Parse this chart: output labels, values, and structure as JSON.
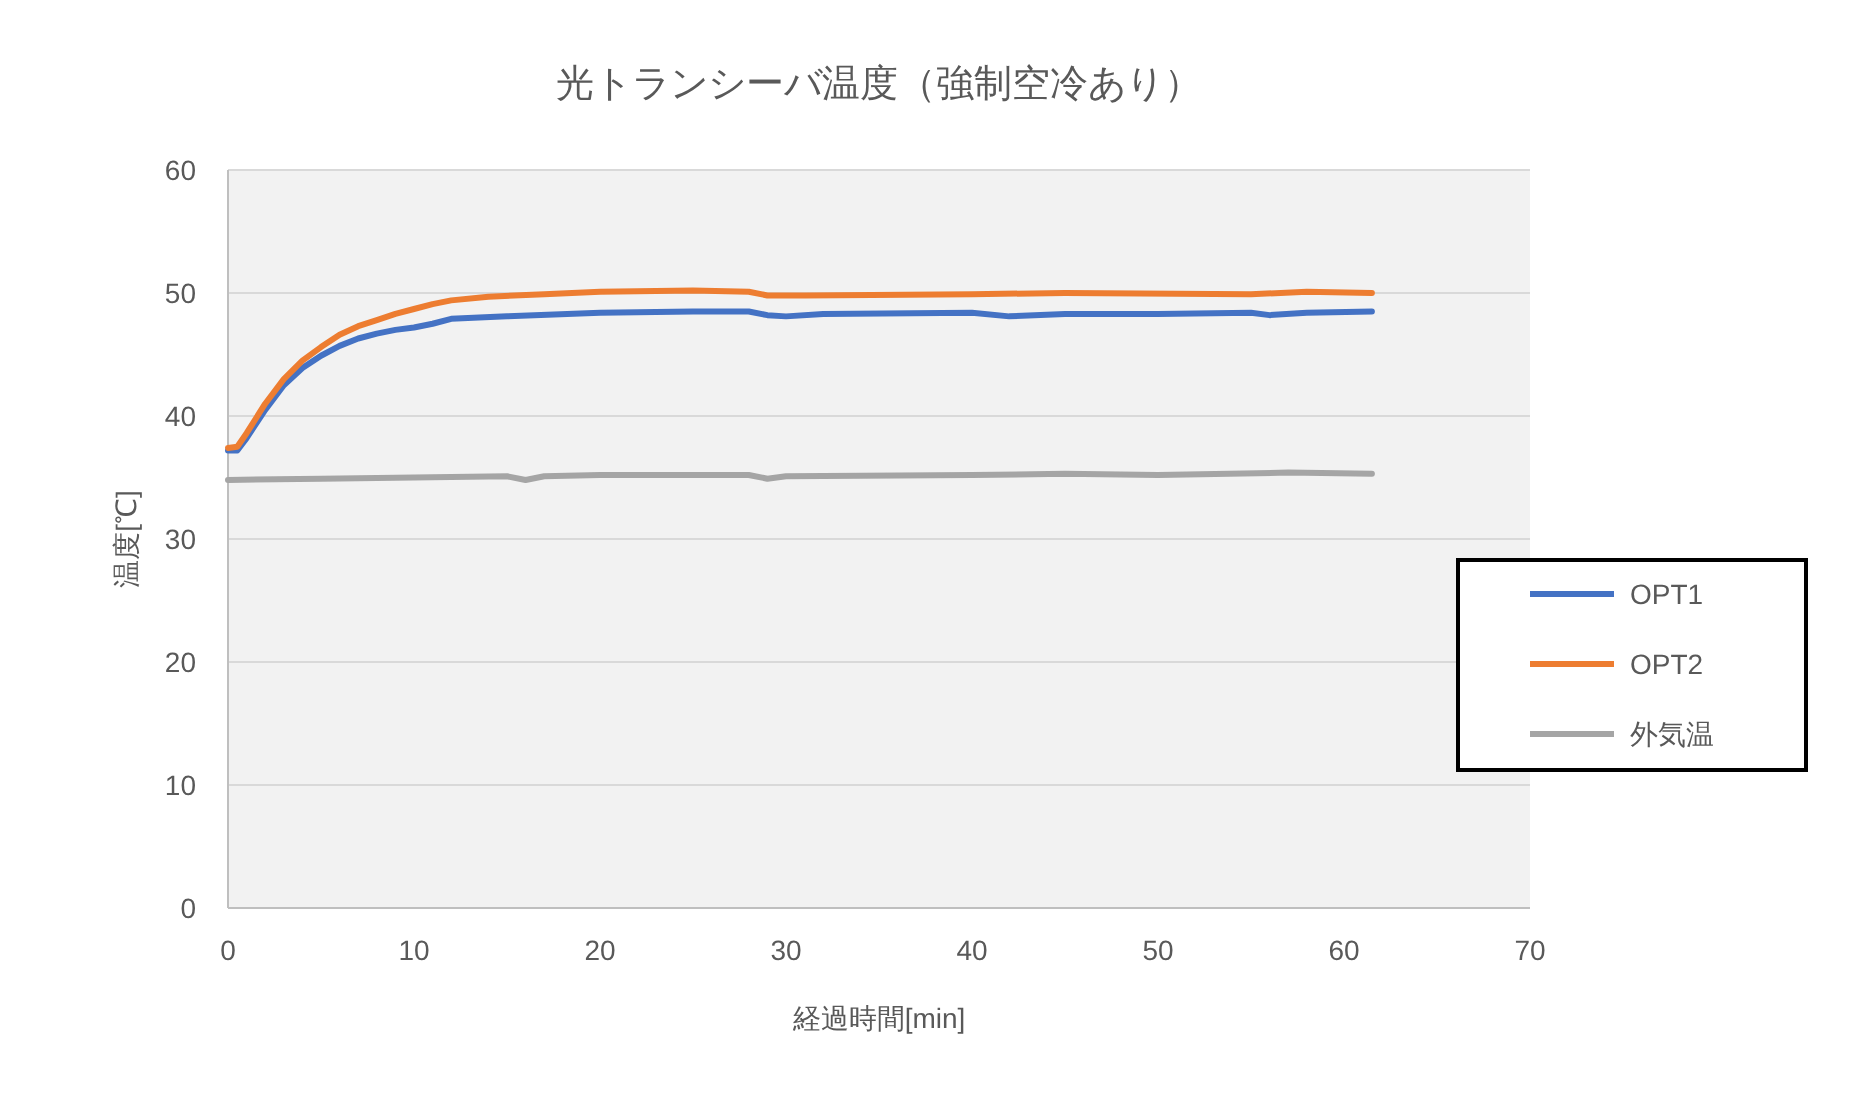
{
  "chart_data": {
    "type": "line",
    "title": "光トランシーバ温度（強制空冷あり）",
    "xlabel": "経過時間[min]",
    "ylabel": "温度[℃]",
    "xlim": [
      0,
      70
    ],
    "xticks": [
      0,
      10,
      20,
      30,
      40,
      50,
      60,
      70
    ],
    "ylim": [
      0,
      60
    ],
    "yticks": [
      0,
      10,
      20,
      30,
      40,
      50,
      60
    ],
    "grid": "y",
    "legend": "right",
    "marker": "none",
    "series": [
      {
        "name": "OPT1",
        "color": "#4472c4",
        "x": [
          0,
          0.5,
          1,
          2,
          3,
          4,
          5,
          6,
          7,
          8,
          9,
          10,
          11,
          12,
          15,
          20,
          25,
          28,
          29,
          30,
          32,
          40,
          42,
          45,
          50,
          55,
          56,
          58,
          61.5
        ],
        "values": [
          37.2,
          37.2,
          38.2,
          40.5,
          42.5,
          43.9,
          44.9,
          45.7,
          46.3,
          46.7,
          47.0,
          47.2,
          47.5,
          47.9,
          48.1,
          48.4,
          48.5,
          48.5,
          48.2,
          48.1,
          48.3,
          48.4,
          48.1,
          48.3,
          48.3,
          48.4,
          48.2,
          48.4,
          48.5
        ]
      },
      {
        "name": "OPT2",
        "color": "#ed7d31",
        "x": [
          0,
          0.5,
          1,
          2,
          3,
          4,
          5,
          6,
          7,
          8,
          9,
          10,
          11,
          12,
          14,
          17,
          20,
          25,
          28,
          29,
          31,
          40,
          45,
          55,
          58,
          61.5
        ],
        "values": [
          37.4,
          37.5,
          38.6,
          41.0,
          43.0,
          44.5,
          45.6,
          46.6,
          47.3,
          47.8,
          48.3,
          48.7,
          49.1,
          49.4,
          49.7,
          49.9,
          50.1,
          50.2,
          50.1,
          49.8,
          49.8,
          49.9,
          50.0,
          49.9,
          50.1,
          50.0
        ]
      },
      {
        "name": "外気温",
        "color": "#a5a5a5",
        "x": [
          0,
          5,
          10,
          15,
          16,
          17,
          20,
          28,
          29,
          30,
          40,
          45,
          50,
          57,
          61.5
        ],
        "values": [
          34.8,
          34.9,
          35.0,
          35.1,
          34.8,
          35.1,
          35.2,
          35.2,
          34.9,
          35.1,
          35.2,
          35.3,
          35.2,
          35.4,
          35.3
        ]
      }
    ]
  }
}
